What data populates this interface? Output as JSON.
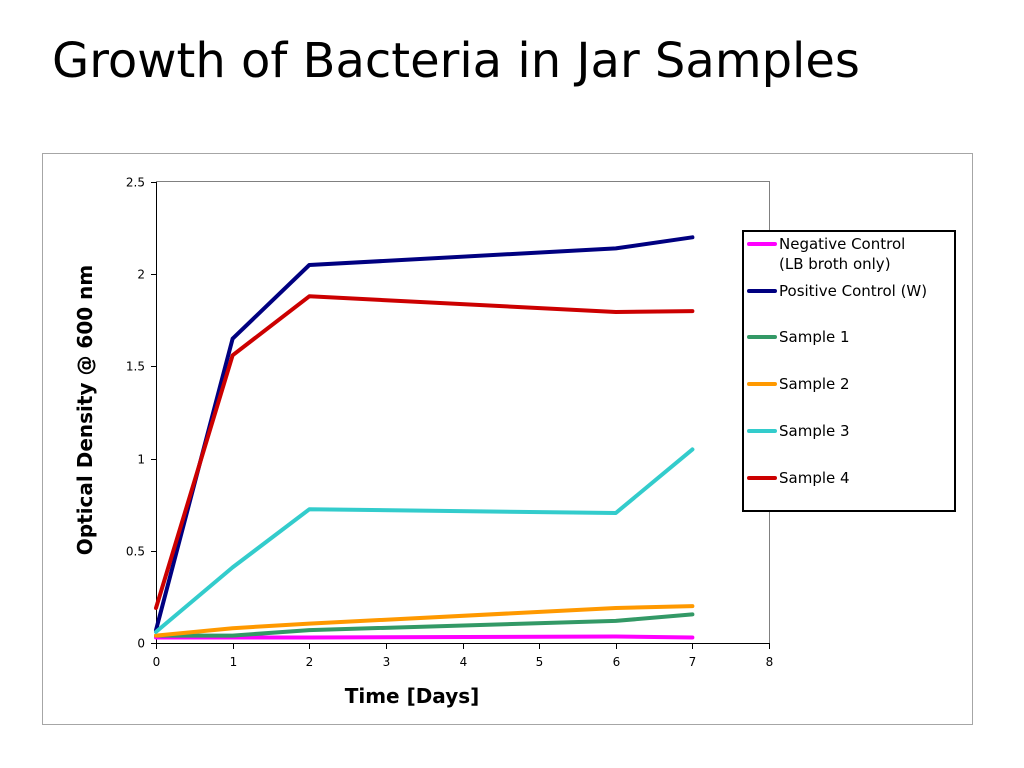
{
  "slide": {
    "title": "Growth of Bacteria in Jar Samples"
  },
  "chart_data": {
    "type": "line",
    "title": "",
    "xlabel": "Time [Days]",
    "ylabel": "Optical Density @ 600 nm",
    "xlim": [
      0,
      8
    ],
    "ylim": [
      0,
      2.5
    ],
    "xticks": [
      0,
      1,
      2,
      3,
      4,
      5,
      6,
      7,
      8
    ],
    "yticks": [
      0,
      0.5,
      1,
      1.5,
      2,
      2.5
    ],
    "ytick_labels": [
      "0",
      "0.5",
      "1",
      "1.5",
      "2",
      "2.5"
    ],
    "grid": "horizontal",
    "legend_position": "right",
    "x": [
      0,
      1,
      2,
      6,
      7
    ],
    "series": [
      {
        "name": "Negative Control (LB broth only)",
        "name_lines": [
          "Negative Control",
          "(LB broth only)"
        ],
        "color": "#ff00ff",
        "values": [
          0.03,
          0.03,
          0.03,
          0.035,
          0.03
        ]
      },
      {
        "name": "Positive Control (W)",
        "name_lines": [
          "Positive Control (W)"
        ],
        "color": "#000080",
        "values": [
          0.07,
          1.65,
          2.05,
          2.14,
          2.2
        ]
      },
      {
        "name": "Sample 1",
        "name_lines": [
          "Sample 1"
        ],
        "color": "#339966",
        "values": [
          0.04,
          0.04,
          0.07,
          0.12,
          0.155
        ]
      },
      {
        "name": "Sample 2",
        "name_lines": [
          "Sample 2"
        ],
        "color": "#ff9900",
        "values": [
          0.04,
          0.08,
          0.105,
          0.19,
          0.2
        ]
      },
      {
        "name": "Sample 3",
        "name_lines": [
          "Sample 3"
        ],
        "color": "#33cccc",
        "values": [
          0.06,
          0.41,
          0.725,
          0.705,
          1.05
        ]
      },
      {
        "name": "Sample 4",
        "name_lines": [
          "Sample 4"
        ],
        "color": "#cc0000",
        "values": [
          0.19,
          1.56,
          1.88,
          1.795,
          1.8
        ]
      }
    ]
  }
}
